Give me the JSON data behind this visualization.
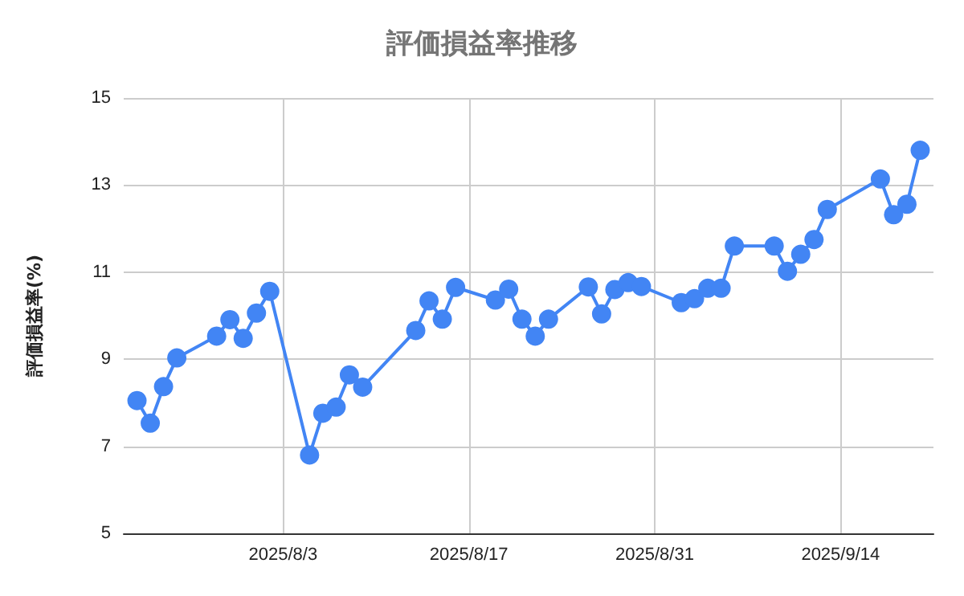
{
  "chart_data": {
    "type": "line",
    "title": "評価損益率推移",
    "ylabel": "評価損益率(%)",
    "x": [
      "2025-07-23",
      "2025-07-24",
      "2025-07-25",
      "2025-07-26",
      "2025-07-29",
      "2025-07-30",
      "2025-07-31",
      "2025-08-01",
      "2025-08-02",
      "2025-08-05",
      "2025-08-06",
      "2025-08-07",
      "2025-08-08",
      "2025-08-09",
      "2025-08-13",
      "2025-08-14",
      "2025-08-15",
      "2025-08-16",
      "2025-08-19",
      "2025-08-20",
      "2025-08-21",
      "2025-08-22",
      "2025-08-23",
      "2025-08-26",
      "2025-08-27",
      "2025-08-28",
      "2025-08-29",
      "2025-08-30",
      "2025-09-02",
      "2025-09-03",
      "2025-09-04",
      "2025-09-05",
      "2025-09-06",
      "2025-09-09",
      "2025-09-10",
      "2025-09-11",
      "2025-09-12",
      "2025-09-13",
      "2025-09-17",
      "2025-09-18",
      "2025-09-19",
      "2025-09-20"
    ],
    "series": [
      {
        "color": "#4285f4",
        "values": [
          8.05,
          7.53,
          8.37,
          9.03,
          9.53,
          9.91,
          9.48,
          10.06,
          10.56,
          6.8,
          7.76,
          7.9,
          8.64,
          8.36,
          9.66,
          10.34,
          9.92,
          10.65,
          10.36,
          10.61,
          9.92,
          9.53,
          9.92,
          10.66,
          10.04,
          10.6,
          10.76,
          10.67,
          10.3,
          10.39,
          10.63,
          10.63,
          11.6,
          11.6,
          11.02,
          11.41,
          11.75,
          12.44,
          13.14,
          12.32,
          12.56,
          13.8
        ]
      }
    ],
    "xlim": [
      "2025-07-22",
      "2025-09-21"
    ],
    "xticks": [
      {
        "value": "2025-08-03",
        "label": "2025/8/3"
      },
      {
        "value": "2025-08-17",
        "label": "2025/8/17"
      },
      {
        "value": "2025-08-31",
        "label": "2025/8/31"
      },
      {
        "value": "2025-09-14",
        "label": "2025/9/14"
      }
    ],
    "ylim": [
      5,
      15
    ],
    "yticks": [
      5,
      7,
      9,
      11,
      13,
      15
    ],
    "grid": true,
    "marker": "circle",
    "line_style": "solid"
  }
}
